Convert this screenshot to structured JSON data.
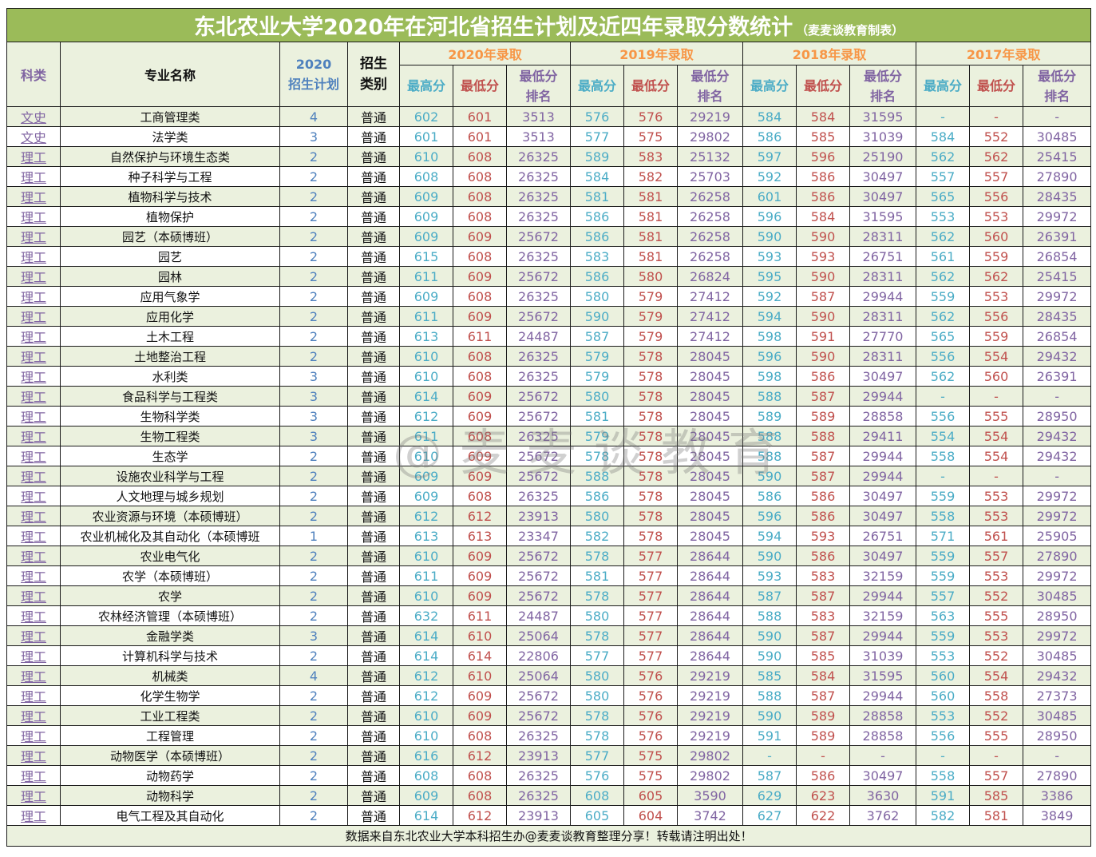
{
  "title": {
    "main": "东北农业大学2020年在河北省招生计划及近四年录取分数统计",
    "sub": "（麦麦谈教育制表）"
  },
  "header": {
    "kelei": "科类",
    "major": "专业名称",
    "plan_year": "2020",
    "plan_label": "招生计划",
    "type_line1": "招生",
    "type_line2": "类别",
    "groups": [
      "2020年录取",
      "2019年录取",
      "2018年录取",
      "2017年录取"
    ],
    "sub": {
      "high": "最高分",
      "low": "最低分",
      "rank_line1": "最低分",
      "rank_line2": "排名"
    }
  },
  "colors": {
    "title_bg": "#9bbb59",
    "header_bg": "#ebf1de",
    "group_text": "#f79646",
    "high_text": "#4bacc6",
    "low_text": "#c0504d",
    "rank_text": "#8064a2",
    "plan_text": "#4f81bd"
  },
  "rows": [
    {
      "kl": "文史",
      "name": "工商管理类",
      "plan": "4",
      "type": "普通",
      "y2020": [
        "602",
        "601",
        "3513"
      ],
      "y2019": [
        "576",
        "576",
        "29219"
      ],
      "y2018": [
        "584",
        "584",
        "31595"
      ],
      "y2017": [
        "-",
        "-",
        "-"
      ]
    },
    {
      "kl": "文史",
      "name": "法学类",
      "plan": "3",
      "type": "普通",
      "y2020": [
        "601",
        "601",
        "3513"
      ],
      "y2019": [
        "577",
        "575",
        "29802"
      ],
      "y2018": [
        "586",
        "585",
        "31039"
      ],
      "y2017": [
        "584",
        "552",
        "30485"
      ]
    },
    {
      "kl": "理工",
      "name": "自然保护与环境生态类",
      "plan": "2",
      "type": "普通",
      "y2020": [
        "610",
        "608",
        "26325"
      ],
      "y2019": [
        "589",
        "583",
        "25132"
      ],
      "y2018": [
        "597",
        "596",
        "25190"
      ],
      "y2017": [
        "562",
        "562",
        "25415"
      ]
    },
    {
      "kl": "理工",
      "name": "种子科学与工程",
      "plan": "2",
      "type": "普通",
      "y2020": [
        "608",
        "608",
        "26325"
      ],
      "y2019": [
        "584",
        "582",
        "25703"
      ],
      "y2018": [
        "592",
        "586",
        "30497"
      ],
      "y2017": [
        "557",
        "557",
        "27890"
      ]
    },
    {
      "kl": "理工",
      "name": "植物科学与技术",
      "plan": "2",
      "type": "普通",
      "y2020": [
        "609",
        "608",
        "26325"
      ],
      "y2019": [
        "581",
        "581",
        "26258"
      ],
      "y2018": [
        "601",
        "586",
        "30497"
      ],
      "y2017": [
        "565",
        "556",
        "28435"
      ]
    },
    {
      "kl": "理工",
      "name": "植物保护",
      "plan": "2",
      "type": "普通",
      "y2020": [
        "609",
        "608",
        "26325"
      ],
      "y2019": [
        "586",
        "581",
        "26258"
      ],
      "y2018": [
        "596",
        "584",
        "31595"
      ],
      "y2017": [
        "553",
        "553",
        "29972"
      ]
    },
    {
      "kl": "理工",
      "name": "园艺（本硕博班）",
      "plan": "2",
      "type": "普通",
      "y2020": [
        "609",
        "609",
        "25672"
      ],
      "y2019": [
        "586",
        "581",
        "26258"
      ],
      "y2018": [
        "590",
        "590",
        "28311"
      ],
      "y2017": [
        "562",
        "560",
        "26391"
      ]
    },
    {
      "kl": "理工",
      "name": "园艺",
      "plan": "2",
      "type": "普通",
      "y2020": [
        "615",
        "608",
        "26325"
      ],
      "y2019": [
        "583",
        "581",
        "26258"
      ],
      "y2018": [
        "593",
        "593",
        "26751"
      ],
      "y2017": [
        "561",
        "559",
        "26854"
      ]
    },
    {
      "kl": "理工",
      "name": "园林",
      "plan": "2",
      "type": "普通",
      "y2020": [
        "611",
        "609",
        "25672"
      ],
      "y2019": [
        "586",
        "580",
        "26824"
      ],
      "y2018": [
        "595",
        "590",
        "28311"
      ],
      "y2017": [
        "562",
        "562",
        "25415"
      ]
    },
    {
      "kl": "理工",
      "name": "应用气象学",
      "plan": "2",
      "type": "普通",
      "y2020": [
        "609",
        "608",
        "26325"
      ],
      "y2019": [
        "580",
        "579",
        "27412"
      ],
      "y2018": [
        "592",
        "587",
        "29944"
      ],
      "y2017": [
        "559",
        "553",
        "29972"
      ]
    },
    {
      "kl": "理工",
      "name": "应用化学",
      "plan": "2",
      "type": "普通",
      "y2020": [
        "611",
        "609",
        "25672"
      ],
      "y2019": [
        "590",
        "579",
        "27412"
      ],
      "y2018": [
        "594",
        "590",
        "28311"
      ],
      "y2017": [
        "562",
        "556",
        "28435"
      ]
    },
    {
      "kl": "理工",
      "name": "土木工程",
      "plan": "2",
      "type": "普通",
      "y2020": [
        "613",
        "611",
        "24487"
      ],
      "y2019": [
        "587",
        "579",
        "27412"
      ],
      "y2018": [
        "598",
        "591",
        "27770"
      ],
      "y2017": [
        "565",
        "559",
        "26854"
      ]
    },
    {
      "kl": "理工",
      "name": "土地整治工程",
      "plan": "2",
      "type": "普通",
      "y2020": [
        "610",
        "608",
        "26325"
      ],
      "y2019": [
        "579",
        "578",
        "28045"
      ],
      "y2018": [
        "596",
        "590",
        "28311"
      ],
      "y2017": [
        "556",
        "554",
        "29432"
      ]
    },
    {
      "kl": "理工",
      "name": "水利类",
      "plan": "3",
      "type": "普通",
      "y2020": [
        "610",
        "608",
        "26325"
      ],
      "y2019": [
        "579",
        "578",
        "28045"
      ],
      "y2018": [
        "598",
        "586",
        "30497"
      ],
      "y2017": [
        "562",
        "560",
        "26391"
      ]
    },
    {
      "kl": "理工",
      "name": "食品科学与工程类",
      "plan": "3",
      "type": "普通",
      "y2020": [
        "614",
        "609",
        "25672"
      ],
      "y2019": [
        "580",
        "578",
        "28045"
      ],
      "y2018": [
        "588",
        "587",
        "29944"
      ],
      "y2017": [
        "-",
        "-",
        "-"
      ]
    },
    {
      "kl": "理工",
      "name": "生物科学类",
      "plan": "3",
      "type": "普通",
      "y2020": [
        "612",
        "609",
        "25672"
      ],
      "y2019": [
        "581",
        "578",
        "28045"
      ],
      "y2018": [
        "589",
        "589",
        "28858"
      ],
      "y2017": [
        "556",
        "555",
        "28950"
      ]
    },
    {
      "kl": "理工",
      "name": "生物工程类",
      "plan": "3",
      "type": "普通",
      "y2020": [
        "611",
        "608",
        "26325"
      ],
      "y2019": [
        "579",
        "578",
        "28045"
      ],
      "y2018": [
        "588",
        "588",
        "29411"
      ],
      "y2017": [
        "554",
        "554",
        "29432"
      ]
    },
    {
      "kl": "理工",
      "name": "生态学",
      "plan": "2",
      "type": "普通",
      "y2020": [
        "610",
        "609",
        "25672"
      ],
      "y2019": [
        "578",
        "578",
        "28045"
      ],
      "y2018": [
        "588",
        "587",
        "29944"
      ],
      "y2017": [
        "558",
        "554",
        "29432"
      ]
    },
    {
      "kl": "理工",
      "name": "设施农业科学与工程",
      "plan": "2",
      "type": "普通",
      "y2020": [
        "609",
        "609",
        "25672"
      ],
      "y2019": [
        "588",
        "578",
        "28045"
      ],
      "y2018": [
        "590",
        "587",
        "29944"
      ],
      "y2017": [
        "-",
        "-",
        "-"
      ]
    },
    {
      "kl": "理工",
      "name": "人文地理与城乡规划",
      "plan": "2",
      "type": "普通",
      "y2020": [
        "609",
        "608",
        "26325"
      ],
      "y2019": [
        "586",
        "578",
        "28045"
      ],
      "y2018": [
        "586",
        "586",
        "30497"
      ],
      "y2017": [
        "559",
        "553",
        "29972"
      ]
    },
    {
      "kl": "理工",
      "name": "农业资源与环境（本硕博班）",
      "plan": "2",
      "type": "普通",
      "y2020": [
        "612",
        "612",
        "23913"
      ],
      "y2019": [
        "580",
        "578",
        "28045"
      ],
      "y2018": [
        "596",
        "586",
        "30497"
      ],
      "y2017": [
        "558",
        "553",
        "29972"
      ]
    },
    {
      "kl": "理工",
      "name": "农业机械化及其自动化（本硕博班",
      "plan": "1",
      "type": "普通",
      "y2020": [
        "613",
        "613",
        "23347"
      ],
      "y2019": [
        "582",
        "578",
        "28045"
      ],
      "y2018": [
        "594",
        "593",
        "26751"
      ],
      "y2017": [
        "571",
        "561",
        "25905"
      ]
    },
    {
      "kl": "理工",
      "name": "农业电气化",
      "plan": "2",
      "type": "普通",
      "y2020": [
        "610",
        "609",
        "25672"
      ],
      "y2019": [
        "578",
        "577",
        "28644"
      ],
      "y2018": [
        "590",
        "586",
        "30497"
      ],
      "y2017": [
        "559",
        "557",
        "27890"
      ]
    },
    {
      "kl": "理工",
      "name": "农学（本硕博班）",
      "plan": "2",
      "type": "普通",
      "y2020": [
        "611",
        "609",
        "25672"
      ],
      "y2019": [
        "581",
        "577",
        "28644"
      ],
      "y2018": [
        "593",
        "583",
        "32159"
      ],
      "y2017": [
        "559",
        "553",
        "29972"
      ]
    },
    {
      "kl": "理工",
      "name": "农学",
      "plan": "2",
      "type": "普通",
      "y2020": [
        "610",
        "609",
        "25672"
      ],
      "y2019": [
        "578",
        "577",
        "28644"
      ],
      "y2018": [
        "587",
        "587",
        "29944"
      ],
      "y2017": [
        "557",
        "552",
        "30485"
      ]
    },
    {
      "kl": "理工",
      "name": "农林经济管理（本硕博班）",
      "plan": "2",
      "type": "普通",
      "y2020": [
        "632",
        "611",
        "24487"
      ],
      "y2019": [
        "580",
        "577",
        "28644"
      ],
      "y2018": [
        "588",
        "583",
        "32159"
      ],
      "y2017": [
        "563",
        "555",
        "28950"
      ]
    },
    {
      "kl": "理工",
      "name": "金融学类",
      "plan": "3",
      "type": "普通",
      "y2020": [
        "614",
        "610",
        "25064"
      ],
      "y2019": [
        "578",
        "577",
        "28644"
      ],
      "y2018": [
        "590",
        "587",
        "29944"
      ],
      "y2017": [
        "559",
        "553",
        "29972"
      ]
    },
    {
      "kl": "理工",
      "name": "计算机科学与技术",
      "plan": "2",
      "type": "普通",
      "y2020": [
        "614",
        "614",
        "22806"
      ],
      "y2019": [
        "577",
        "577",
        "28644"
      ],
      "y2018": [
        "590",
        "585",
        "31039"
      ],
      "y2017": [
        "553",
        "552",
        "30485"
      ]
    },
    {
      "kl": "理工",
      "name": "机械类",
      "plan": "4",
      "type": "普通",
      "y2020": [
        "612",
        "610",
        "25064"
      ],
      "y2019": [
        "580",
        "576",
        "29219"
      ],
      "y2018": [
        "585",
        "584",
        "31595"
      ],
      "y2017": [
        "560",
        "554",
        "29432"
      ]
    },
    {
      "kl": "理工",
      "name": "化学生物学",
      "plan": "2",
      "type": "普通",
      "y2020": [
        "612",
        "609",
        "25672"
      ],
      "y2019": [
        "580",
        "576",
        "29219"
      ],
      "y2018": [
        "588",
        "587",
        "29944"
      ],
      "y2017": [
        "560",
        "558",
        "27373"
      ]
    },
    {
      "kl": "理工",
      "name": "工业工程类",
      "plan": "2",
      "type": "普通",
      "y2020": [
        "610",
        "609",
        "25672"
      ],
      "y2019": [
        "578",
        "576",
        "29219"
      ],
      "y2018": [
        "590",
        "589",
        "28858"
      ],
      "y2017": [
        "553",
        "552",
        "30485"
      ]
    },
    {
      "kl": "理工",
      "name": "工程管理",
      "plan": "2",
      "type": "普通",
      "y2020": [
        "610",
        "608",
        "26325"
      ],
      "y2019": [
        "578",
        "576",
        "29219"
      ],
      "y2018": [
        "591",
        "589",
        "28858"
      ],
      "y2017": [
        "556",
        "555",
        "28950"
      ]
    },
    {
      "kl": "理工",
      "name": "动物医学（本硕博班）",
      "plan": "2",
      "type": "普通",
      "y2020": [
        "616",
        "612",
        "23913"
      ],
      "y2019": [
        "577",
        "575",
        "29802"
      ],
      "y2018": [
        "-",
        "-",
        "-"
      ],
      "y2017": [
        "-",
        "-",
        "-"
      ]
    },
    {
      "kl": "理工",
      "name": "动物药学",
      "plan": "2",
      "type": "普通",
      "y2020": [
        "608",
        "608",
        "26325"
      ],
      "y2019": [
        "576",
        "575",
        "29802"
      ],
      "y2018": [
        "587",
        "586",
        "30497"
      ],
      "y2017": [
        "558",
        "557",
        "27890"
      ]
    },
    {
      "kl": "理工",
      "name": "动物科学",
      "plan": "2",
      "type": "普通",
      "y2020": [
        "609",
        "608",
        "26325"
      ],
      "y2019": [
        "608",
        "605",
        "3590"
      ],
      "y2018": [
        "629",
        "623",
        "3630"
      ],
      "y2017": [
        "591",
        "585",
        "3386"
      ]
    },
    {
      "kl": "理工",
      "name": "电气工程及其自动化",
      "plan": "2",
      "type": "普通",
      "y2020": [
        "614",
        "612",
        "23913"
      ],
      "y2019": [
        "605",
        "604",
        "3742"
      ],
      "y2018": [
        "627",
        "622",
        "3762"
      ],
      "y2017": [
        "582",
        "581",
        "3849"
      ]
    }
  ],
  "footer": "数据来自东北农业大学本科招生办@麦麦谈教育整理分享！转载请注明出处！",
  "watermark": "@麦麦谈教育"
}
